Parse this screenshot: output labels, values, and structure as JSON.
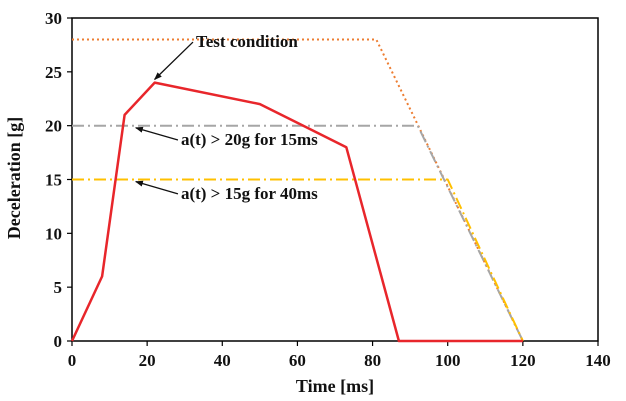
{
  "chart_data": {
    "type": "line",
    "xlabel": "Time [ms]",
    "ylabel": "Deceleration [g]",
    "xlim": [
      0,
      140
    ],
    "ylim": [
      0,
      30
    ],
    "xticks": [
      0,
      20,
      40,
      60,
      80,
      100,
      120,
      140
    ],
    "yticks": [
      0,
      5,
      10,
      15,
      20,
      25,
      30
    ],
    "grid": false,
    "legend": "none",
    "series": [
      {
        "color": "#e8262b",
        "style": "solid",
        "points": [
          [
            0,
            0
          ],
          [
            8,
            6
          ],
          [
            14,
            21
          ],
          [
            22,
            24
          ],
          [
            50,
            22
          ],
          [
            73,
            18
          ],
          [
            87,
            0
          ],
          [
            120,
            0
          ]
        ]
      },
      {
        "color": "#ed7d31",
        "style": "dotted",
        "points": [
          [
            0,
            28
          ],
          [
            81,
            28
          ],
          [
            120,
            0
          ]
        ]
      },
      {
        "color": "#a6a6a6",
        "style": "dashdot",
        "points": [
          [
            0,
            20
          ],
          [
            92,
            20
          ],
          [
            120,
            0
          ]
        ]
      },
      {
        "color": "#ffc000",
        "style": "dashdot",
        "points": [
          [
            0,
            15
          ],
          [
            100,
            15
          ],
          [
            120,
            0
          ]
        ]
      }
    ],
    "annotations": [
      {
        "text": "Test condition",
        "text_at": [
          33,
          27.3
        ],
        "arrow_to": [
          22,
          24.3
        ]
      },
      {
        "text": "a(t) > 20g for 15ms",
        "text_at": [
          29,
          18.2
        ],
        "arrow_to": [
          17,
          19.8
        ]
      },
      {
        "text": "a(t) > 15g for 40ms",
        "text_at": [
          29,
          13.2
        ],
        "arrow_to": [
          17,
          14.8
        ]
      }
    ]
  }
}
